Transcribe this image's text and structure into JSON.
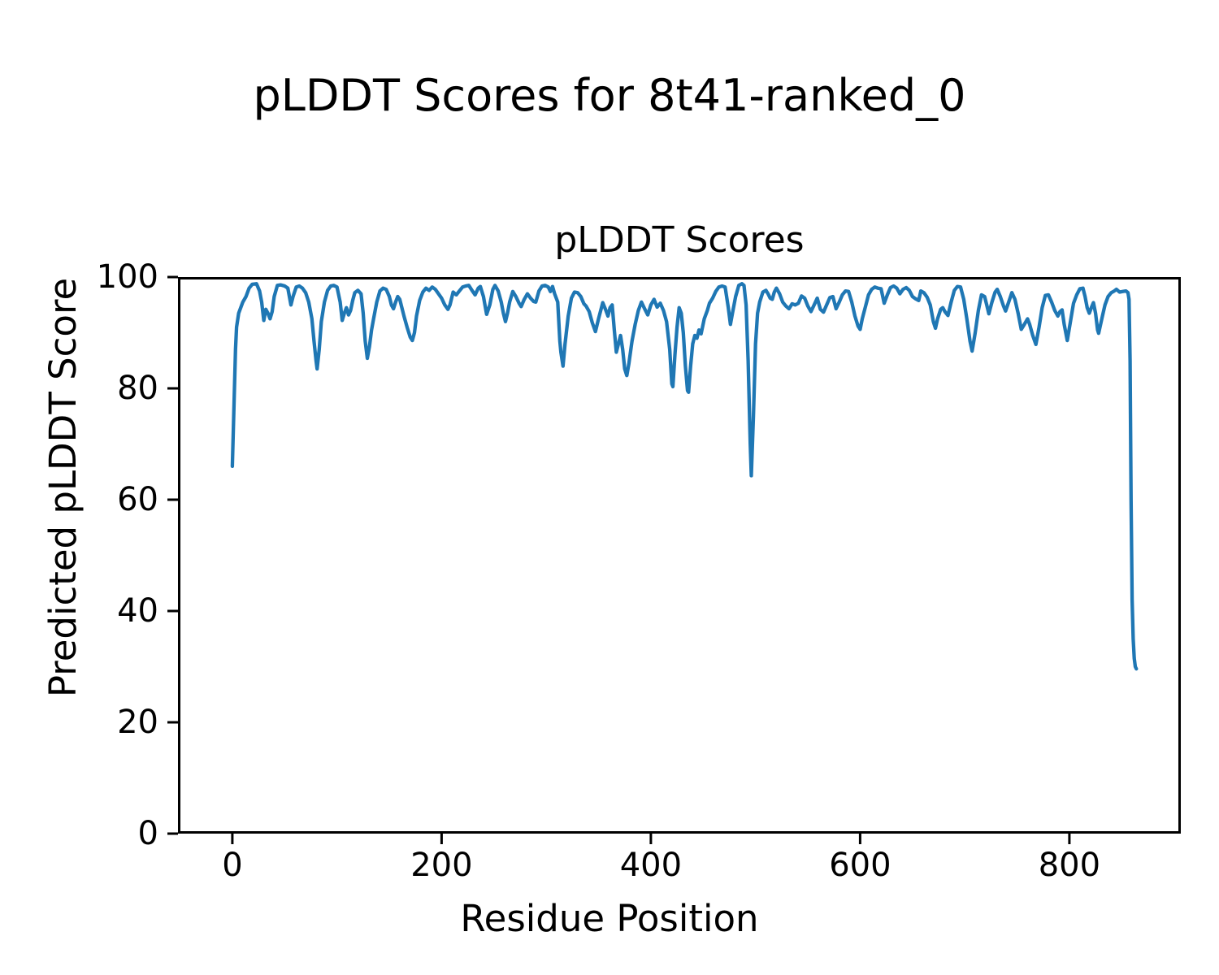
{
  "figure": {
    "suptitle": "pLDDT Scores for 8t41-ranked_0",
    "axes_title": "pLDDT Scores",
    "xlabel": "Residue Position",
    "ylabel": "Predicted pLDDT Score"
  },
  "colors": {
    "line": "#1f77b4",
    "axis": "#000000",
    "text": "#000000",
    "background": "#ffffff"
  },
  "chart_data": {
    "type": "line",
    "title": "pLDDT Scores",
    "suptitle": "pLDDT Scores for 8t41-ranked_0",
    "xlabel": "Residue Position",
    "ylabel": "Predicted pLDDT Score",
    "xlim": [
      -52,
      906.5
    ],
    "ylim": [
      0,
      100
    ],
    "xticks": [
      0,
      200,
      400,
      600,
      800
    ],
    "yticks": [
      0,
      20,
      40,
      60,
      80,
      100
    ],
    "grid": false,
    "legend": null,
    "line_width": 4.3,
    "series": [
      {
        "name": "pLDDT",
        "color": "#1f77b4",
        "x": [
          0,
          1,
          2,
          3,
          4,
          6,
          8,
          10,
          13,
          16,
          19,
          23,
          26,
          28,
          30,
          32,
          34,
          36,
          38,
          40,
          43,
          46,
          50,
          53,
          56,
          58,
          61,
          64,
          67,
          70,
          73,
          76,
          78,
          80,
          81,
          83,
          85,
          88,
          91,
          94,
          97,
          100,
          103,
          105,
          107,
          109,
          111,
          113,
          115,
          117,
          120,
          123,
          125,
          127,
          129,
          131,
          133,
          135,
          138,
          141,
          144,
          147,
          150,
          152,
          154,
          156,
          158,
          160,
          162,
          164,
          167,
          170,
          172,
          174,
          176,
          179,
          182,
          185,
          188,
          191,
          194,
          197,
          200,
          203,
          206,
          208,
          211,
          214,
          217,
          220,
          223,
          226,
          229,
          232,
          235,
          237,
          240,
          243,
          246,
          249,
          251,
          254,
          257,
          259,
          261,
          263,
          265,
          268,
          271,
          274,
          276,
          279,
          282,
          285,
          288,
          290,
          293,
          296,
          299,
          302,
          304,
          306,
          308,
          311,
          313,
          314,
          316,
          318,
          321,
          324,
          327,
          330,
          333,
          336,
          338,
          341,
          344,
          347,
          350,
          354,
          357,
          359,
          361,
          363,
          365,
          367,
          369,
          371,
          373,
          375,
          377,
          379,
          382,
          385,
          388,
          391,
          394,
          397,
          400,
          403,
          406,
          409,
          412,
          415,
          418,
          420,
          421,
          423,
          425,
          427,
          429,
          431,
          433,
          435,
          436,
          438,
          440,
          442,
          444,
          446,
          448,
          451,
          454,
          456,
          459,
          462,
          465,
          468,
          471,
          474,
          476,
          478,
          481,
          484,
          487,
          489,
          491,
          493,
          495,
          496,
          498,
          500,
          502,
          504,
          507,
          510,
          512,
          514,
          516,
          518,
          520,
          523,
          526,
          529,
          532,
          535,
          538,
          541,
          544,
          547,
          550,
          553,
          556,
          559,
          562,
          565,
          568,
          571,
          574,
          577,
          580,
          583,
          586,
          589,
          592,
          595,
          598,
          600,
          602,
          605,
          608,
          611,
          614,
          617,
          620,
          623,
          626,
          629,
          632,
          635,
          638,
          641,
          644,
          647,
          650,
          653,
          656,
          658,
          661,
          664,
          667,
          670,
          672,
          674,
          677,
          679,
          681,
          684,
          687,
          690,
          693,
          696,
          699,
          702,
          705,
          707,
          710,
          713,
          716,
          719,
          721,
          723,
          726,
          729,
          731,
          734,
          737,
          739,
          742,
          745,
          748,
          751,
          754,
          757,
          760,
          762,
          765,
          768,
          771,
          774,
          777,
          780,
          783,
          786,
          789,
          791,
          793,
          795,
          798,
          801,
          804,
          807,
          810,
          813,
          815,
          817,
          819,
          821,
          823,
          825,
          827,
          828,
          831,
          834,
          837,
          840,
          843,
          845,
          848,
          851,
          854,
          856,
          857,
          858,
          859,
          860,
          861,
          862,
          863,
          864
        ],
        "y": [
          66,
          73,
          80,
          87,
          91,
          93.5,
          94.5,
          95.5,
          96.5,
          98,
          98.7,
          98.8,
          97.5,
          95.5,
          92.2,
          94.2,
          93.5,
          92.5,
          93.8,
          96.5,
          98.5,
          98.6,
          98.4,
          98,
          95,
          96.5,
          98.2,
          98.4,
          98,
          97.2,
          95.5,
          92.5,
          88.5,
          85,
          83.5,
          87,
          92,
          95.5,
          97.6,
          98.4,
          98.5,
          98.2,
          95.5,
          92.2,
          93.5,
          94.5,
          93.2,
          94,
          95.8,
          97.2,
          97.6,
          97,
          93.5,
          88.5,
          85.4,
          87.5,
          90.5,
          92.5,
          95.5,
          97.5,
          98,
          97.8,
          96.5,
          95,
          94.3,
          95.5,
          96.5,
          96,
          94.5,
          93,
          91,
          89.2,
          88.6,
          90,
          93,
          95.8,
          97.3,
          98,
          97.6,
          98.2,
          97.8,
          97,
          96.2,
          95,
          94.2,
          95,
          97.3,
          96.8,
          97.5,
          98.2,
          98.4,
          98.5,
          97.6,
          96.8,
          98,
          98.3,
          96.5,
          93.3,
          95,
          97.8,
          98.5,
          97.5,
          95.5,
          93.5,
          92,
          93.5,
          95.5,
          97.4,
          96.5,
          95.3,
          94.7,
          96,
          97,
          96.2,
          95.6,
          95.5,
          97.5,
          98.4,
          98.5,
          98.2,
          97.4,
          98.3,
          97,
          95.5,
          88.5,
          86.5,
          84,
          88,
          93,
          96.2,
          97.3,
          97.2,
          96.5,
          95.2,
          94.8,
          93.8,
          91.8,
          90.2,
          92.5,
          95.4,
          94,
          93,
          94.5,
          95,
          90.5,
          86.5,
          88,
          89.5,
          87,
          83.5,
          82.3,
          84.5,
          88.5,
          91.5,
          94,
          95.5,
          94.3,
          93.2,
          95,
          96,
          94.6,
          95.3,
          94,
          92,
          87,
          80.8,
          80.3,
          86,
          91,
          94.5,
          93.5,
          90,
          84,
          79.6,
          79.3,
          84,
          88,
          89.5,
          89,
          90.5,
          89.8,
          92.5,
          94,
          95.3,
          96.2,
          97.4,
          98.2,
          98.4,
          98.2,
          94.5,
          91.5,
          93.5,
          96.5,
          98.5,
          98.8,
          98.5,
          95,
          85,
          70,
          64.3,
          75,
          88,
          93.5,
          95.5,
          97.3,
          97.6,
          97,
          96.2,
          96,
          97.3,
          98,
          97,
          95.5,
          94.8,
          94.3,
          95.2,
          95,
          95.3,
          96.6,
          96.2,
          94.8,
          93.8,
          95,
          96.2,
          94.2,
          93.7,
          95,
          96.3,
          96.5,
          94.3,
          95.5,
          96.8,
          97.5,
          97.4,
          95.5,
          93,
          91.2,
          90.6,
          92.5,
          94.6,
          96.8,
          97.8,
          98.2,
          98,
          97.9,
          95.3,
          96.8,
          98.1,
          98.4,
          98,
          97,
          97.8,
          98.1,
          97.6,
          96.5,
          96.1,
          95.8,
          97.5,
          97.2,
          96.4,
          95,
          92,
          90.8,
          92.5,
          94.2,
          94.5,
          93.8,
          93.1,
          95.5,
          97.6,
          98.3,
          98.2,
          96,
          92.5,
          88.5,
          86.7,
          90,
          94,
          96.8,
          96.5,
          95,
          93.4,
          95.5,
          97.3,
          97.8,
          96.5,
          94.8,
          93.9,
          95.5,
          97.2,
          96,
          93.5,
          90.6,
          91.5,
          92.5,
          91.5,
          89.5,
          87.9,
          91,
          94.5,
          96.7,
          96.8,
          95.5,
          94,
          93,
          93.8,
          94.1,
          91.5,
          88.6,
          92,
          95.3,
          96.8,
          97.9,
          98,
          96.5,
          94.5,
          93.5,
          94.5,
          95.4,
          93.5,
          90.5,
          89.9,
          92.5,
          95,
          96.5,
          97.2,
          97.5,
          97.8,
          97.3,
          97.4,
          97.5,
          97.2,
          96,
          85,
          60,
          42,
          35,
          31.5,
          30,
          29.6
        ]
      }
    ]
  }
}
